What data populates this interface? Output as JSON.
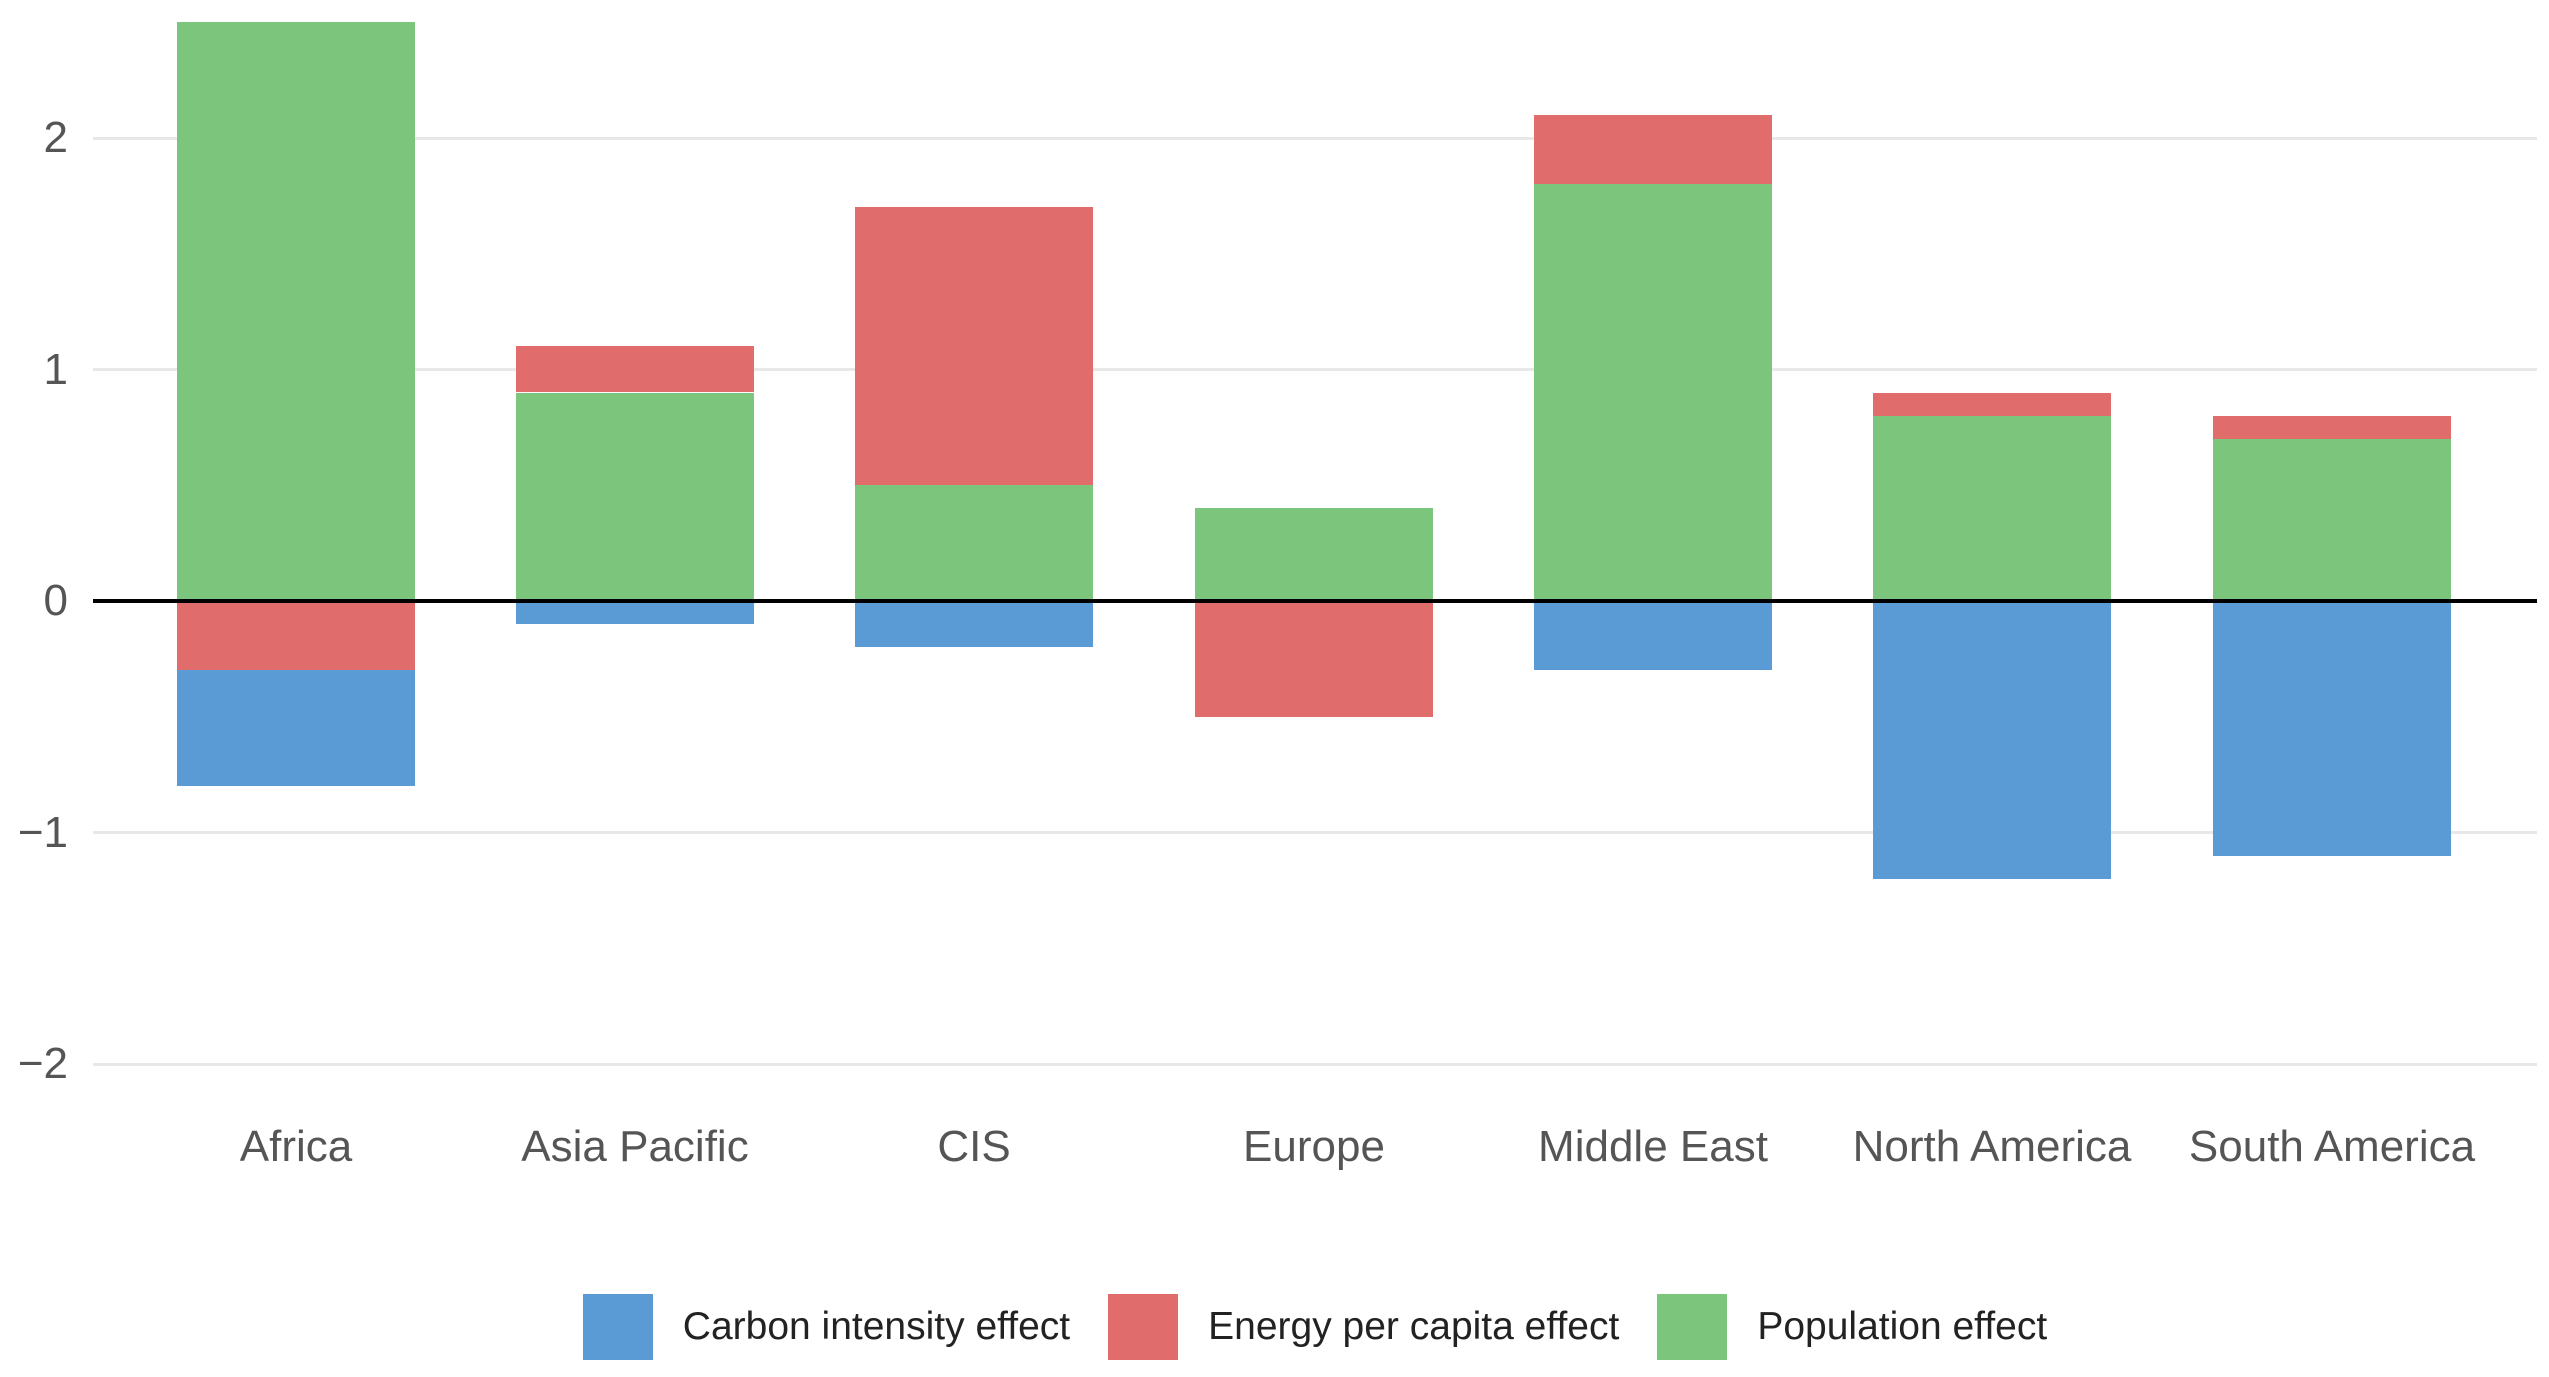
{
  "page": {
    "background": "#ffffff"
  },
  "chart_data": {
    "type": "bar",
    "stacked": true,
    "orientation": "vertical",
    "title": "",
    "subtitle": "",
    "xlabel": "",
    "ylabel": "",
    "categories": [
      "Africa",
      "Asia Pacific",
      "CIS",
      "Europe",
      "Middle East",
      "North America",
      "South America"
    ],
    "series": [
      {
        "name": "Carbon intensity effect",
        "color": "#5b9bd5",
        "values": [
          -0.5,
          -0.1,
          -0.2,
          0,
          -0.3,
          -1.2,
          -1.1
        ]
      },
      {
        "name": "Energy per capita effect",
        "color": "#e06c6b",
        "values": [
          -0.3,
          0.2,
          1.2,
          -0.5,
          0.3,
          0.1,
          0.1
        ]
      },
      {
        "name": "Population effect",
        "color": "#7cc57d",
        "values": [
          2.5,
          0.9,
          0.5,
          0.4,
          1.8,
          0.8,
          0.7
        ]
      }
    ],
    "stack_totals_positive": [
      2.5,
      1.1,
      1.7,
      0.4,
      2.1,
      0.9,
      0.8
    ],
    "stack_totals_negative": [
      -0.8,
      -0.1,
      -0.2,
      -0.5,
      -0.3,
      -1.2,
      -1.1
    ],
    "ylim": [
      -2.3,
      2.55
    ],
    "yticks": [
      2,
      1,
      0,
      -1,
      -2
    ],
    "ytick_labels": [
      "2",
      "1",
      "0",
      "−1",
      "−2"
    ],
    "grid": true,
    "legend_position": "bottom",
    "axis_line_color": "#000000",
    "gridline_color": "#e8e8e8",
    "tick_label_color": "#555555",
    "legend_text_color": "#222222"
  }
}
